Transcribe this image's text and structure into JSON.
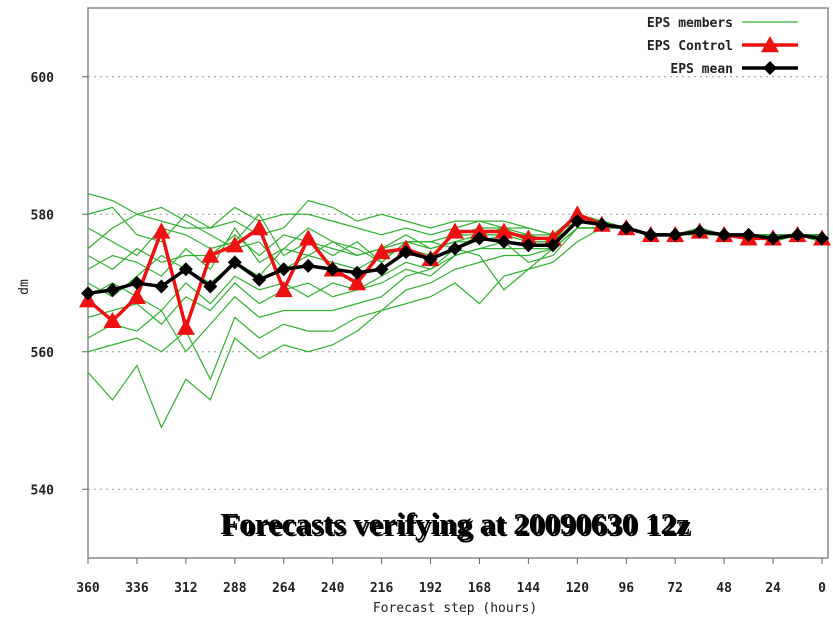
{
  "chart_data": {
    "type": "line",
    "annotation": "Forecasts verifying at 20090630 12z",
    "x_label": "Forecast step (hours)",
    "y_label": "dm",
    "x": [
      360,
      348,
      336,
      324,
      312,
      300,
      288,
      276,
      264,
      252,
      240,
      228,
      216,
      204,
      192,
      180,
      168,
      156,
      144,
      132,
      120,
      108,
      96,
      84,
      72,
      60,
      48,
      36,
      24,
      12,
      0
    ],
    "xlim": [
      360,
      0
    ],
    "xticks": [
      360,
      336,
      312,
      288,
      264,
      240,
      216,
      192,
      168,
      144,
      120,
      96,
      72,
      48,
      24,
      0
    ],
    "ylim": [
      530,
      610
    ],
    "yticks": [
      540,
      560,
      580,
      600
    ],
    "grid": true,
    "legend": "upper right",
    "series": [
      {
        "name": "EPS members",
        "color": "#33b233",
        "members": [
          [
            583,
            582,
            580,
            579,
            578,
            578,
            579,
            577,
            578,
            582,
            581,
            579,
            580,
            579,
            578,
            579,
            579,
            579,
            578,
            577,
            580,
            579,
            578,
            577,
            577,
            578,
            577,
            577,
            577,
            577,
            577
          ],
          [
            557,
            553,
            558,
            549,
            556,
            553,
            562,
            559,
            561,
            560,
            561,
            563,
            566,
            567,
            568,
            570,
            567,
            571,
            572,
            573,
            576,
            578,
            578,
            577,
            577,
            577,
            577,
            577,
            576,
            577,
            576
          ],
          [
            560,
            561,
            562,
            560,
            563,
            556,
            565,
            562,
            564,
            563,
            563,
            565,
            566,
            569,
            570,
            572,
            573,
            574,
            574,
            575,
            578,
            578,
            578,
            577,
            577,
            578,
            577,
            577,
            577,
            577,
            577
          ],
          [
            578,
            576,
            574,
            578,
            577,
            575,
            576,
            580,
            574,
            576,
            575,
            574,
            575,
            577,
            575,
            576,
            577,
            577,
            577,
            576,
            579,
            579,
            578,
            577,
            577,
            578,
            577,
            577,
            577,
            577,
            577
          ],
          [
            572,
            574,
            573,
            571,
            575,
            572,
            578,
            573,
            575,
            574,
            573,
            572,
            574,
            575,
            574,
            577,
            577,
            577,
            576,
            576,
            579,
            579,
            578,
            577,
            577,
            577,
            577,
            577,
            576,
            577,
            576
          ],
          [
            565,
            566,
            567,
            564,
            568,
            566,
            570,
            567,
            569,
            570,
            568,
            569,
            570,
            572,
            571,
            574,
            575,
            575,
            575,
            575,
            578,
            578,
            578,
            577,
            577,
            577,
            577,
            577,
            577,
            577,
            576
          ],
          [
            575,
            578,
            580,
            581,
            579,
            577,
            575,
            576,
            572,
            574,
            576,
            575,
            573,
            576,
            576,
            577,
            578,
            578,
            576,
            576,
            580,
            579,
            578,
            577,
            577,
            578,
            577,
            577,
            576,
            577,
            576
          ],
          [
            562,
            564,
            563,
            566,
            560,
            564,
            568,
            565,
            566,
            566,
            566,
            567,
            568,
            571,
            572,
            574,
            575,
            576,
            573,
            574,
            578,
            578,
            578,
            577,
            577,
            577,
            577,
            577,
            576,
            577,
            576
          ],
          [
            570,
            568,
            571,
            574,
            572,
            570,
            573,
            571,
            575,
            578,
            576,
            574,
            575,
            576,
            575,
            576,
            576,
            577,
            577,
            576,
            579,
            579,
            578,
            577,
            577,
            577,
            577,
            577,
            577,
            577,
            577
          ],
          [
            580,
            581,
            577,
            576,
            580,
            578,
            581,
            579,
            580,
            580,
            579,
            578,
            577,
            578,
            577,
            578,
            579,
            578,
            578,
            577,
            580,
            579,
            578,
            577,
            577,
            578,
            577,
            577,
            577,
            577,
            577
          ],
          [
            568,
            570,
            568,
            566,
            570,
            567,
            571,
            569,
            570,
            568,
            570,
            569,
            571,
            573,
            572,
            575,
            574,
            569,
            572,
            575,
            578,
            578,
            578,
            577,
            577,
            577,
            577,
            577,
            577,
            577,
            577
          ],
          [
            574,
            572,
            575,
            573,
            574,
            574,
            577,
            574,
            577,
            576,
            574,
            576,
            573,
            576,
            576,
            575,
            577,
            578,
            577,
            577,
            579,
            579,
            578,
            577,
            577,
            577,
            577,
            577,
            577,
            577,
            577
          ]
        ]
      },
      {
        "name": "EPS Control",
        "color": "#ee1111",
        "marker": "triangle",
        "values": [
          567.5,
          564.5,
          568,
          577.5,
          563.5,
          574,
          575.5,
          578,
          569,
          576.5,
          572,
          570,
          574.5,
          575,
          573.5,
          577.5,
          577.5,
          577.5,
          576.5,
          576.5,
          580,
          578.5,
          578,
          577,
          577,
          577.5,
          577,
          576.5,
          576.5,
          577,
          576.5
        ]
      },
      {
        "name": "EPS mean",
        "color": "#000000",
        "marker": "diamond",
        "values": [
          568.5,
          569,
          570,
          569.5,
          572,
          569.5,
          573,
          570.5,
          572,
          572.5,
          572,
          571.5,
          572,
          574.5,
          573.5,
          575,
          576.5,
          576,
          575.5,
          575.5,
          579,
          578.5,
          578,
          577,
          577,
          577.5,
          577,
          577,
          576.5,
          577,
          576.5
        ]
      }
    ]
  }
}
